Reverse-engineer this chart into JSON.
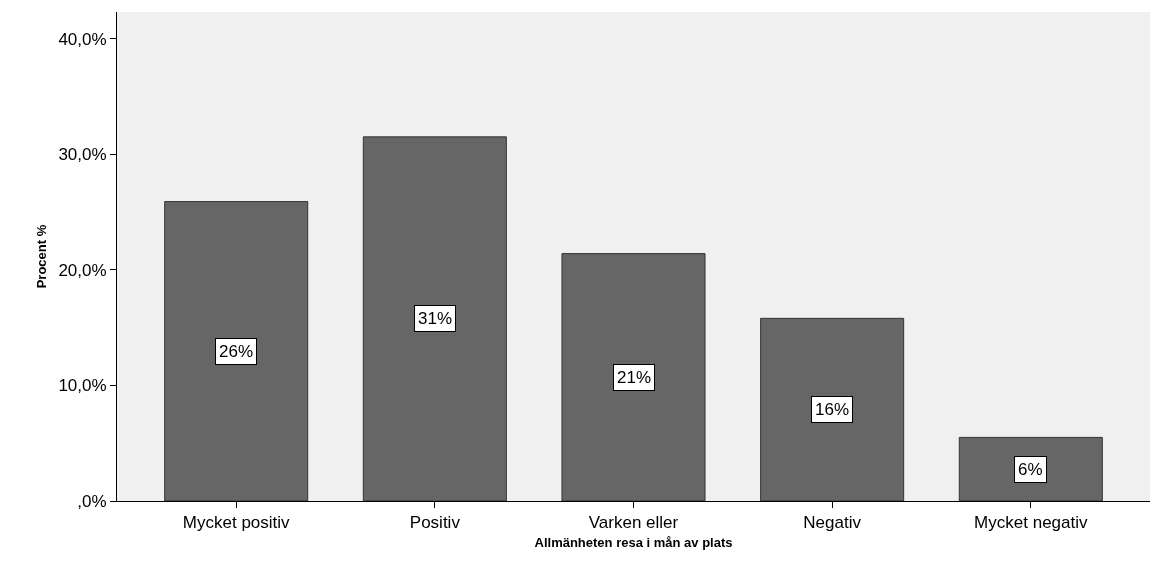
{
  "chart_data": {
    "type": "bar",
    "xlabel": "Allmänheten resa i mån av plats",
    "ylabel": "Procent %",
    "categories": [
      "Mycket positiv",
      "Positiv",
      "Varken eller",
      "Negativ",
      "Mycket negativ"
    ],
    "values": [
      25.9,
      31.5,
      21.4,
      15.8,
      5.5
    ],
    "value_labels": [
      "26%",
      "31%",
      "21%",
      "16%",
      "6%"
    ],
    "color": "#666666",
    "ylim": [
      0,
      42.3
    ],
    "yticks": [
      {
        "value": 0,
        "label": ",0%"
      },
      {
        "value": 10,
        "label": "10,0%"
      },
      {
        "value": 20,
        "label": "20,0%"
      },
      {
        "value": 30,
        "label": "30,0%"
      },
      {
        "value": 40,
        "label": "40,0%"
      }
    ],
    "grid": false,
    "legend": false
  }
}
